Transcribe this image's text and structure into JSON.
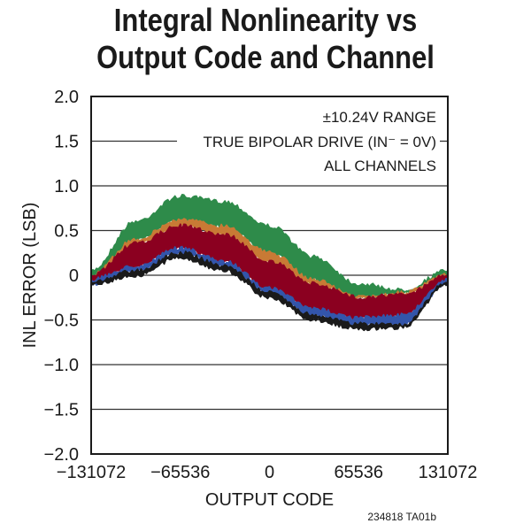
{
  "chart_data": {
    "type": "area",
    "title_lines": [
      "Integral Nonlinearity vs",
      "Output Code and Channel"
    ],
    "xlabel": "OUTPUT CODE",
    "ylabel": "INL ERROR (LSB)",
    "xlim": [
      -131072,
      131072
    ],
    "ylim": [
      -2.0,
      2.0
    ],
    "xticks": [
      -131072,
      -65536,
      0,
      65536,
      131072
    ],
    "xtick_labels": [
      "−131072",
      "−65536",
      "0",
      "65536",
      "131072"
    ],
    "yticks": [
      2.0,
      1.5,
      1.0,
      0.5,
      0,
      -0.5,
      -1.0,
      -1.5,
      -2.0
    ],
    "ytick_labels": [
      "2.0",
      "1.5",
      "1.0",
      "0.5",
      "0",
      "−0.5",
      "−1.0",
      "−1.5",
      "−2.0"
    ],
    "grid": "horizontal",
    "annotations": [
      "±10.24V RANGE",
      "TRUE BIPOLAR DRIVE (IN⁻ = 0V)",
      "ALL CHANNELS"
    ],
    "figure_note": "234818 TA01b",
    "x": [
      -131072,
      -98304,
      -65536,
      -32768,
      0,
      32768,
      65536,
      98304,
      131072
    ],
    "series": [
      {
        "name": "green",
        "color": "#2e8b4a",
        "upper": [
          0.05,
          0.6,
          0.88,
          0.82,
          0.55,
          0.2,
          -0.1,
          -0.17,
          0.05
        ],
        "lower": [
          -0.05,
          0.4,
          0.62,
          0.55,
          0.25,
          -0.05,
          -0.25,
          -0.2,
          0.0
        ]
      },
      {
        "name": "orange",
        "color": "#c87a35",
        "upper": [
          0.0,
          0.4,
          0.62,
          0.55,
          0.25,
          -0.05,
          -0.25,
          -0.2,
          0.0
        ],
        "lower": [
          -0.05,
          0.35,
          0.55,
          0.45,
          0.15,
          -0.1,
          -0.25,
          -0.22,
          0.0
        ]
      },
      {
        "name": "red",
        "color": "#8b0020",
        "upper": [
          0.0,
          0.35,
          0.55,
          0.45,
          0.15,
          -0.1,
          -0.25,
          -0.22,
          0.0
        ],
        "lower": [
          -0.05,
          0.1,
          0.3,
          0.15,
          -0.15,
          -0.38,
          -0.48,
          -0.45,
          -0.05
        ]
      },
      {
        "name": "blue",
        "color": "#3355aa",
        "upper": [
          -0.05,
          0.1,
          0.3,
          0.15,
          -0.15,
          -0.38,
          -0.48,
          -0.45,
          -0.05
        ],
        "lower": [
          -0.1,
          0.05,
          0.25,
          0.1,
          -0.2,
          -0.45,
          -0.55,
          -0.55,
          -0.08
        ]
      },
      {
        "name": "black",
        "color": "#1a1a1a",
        "upper": [
          -0.08,
          0.05,
          0.25,
          0.1,
          -0.2,
          -0.45,
          -0.55,
          -0.55,
          -0.08
        ],
        "lower": [
          -0.1,
          0.0,
          0.2,
          0.05,
          -0.25,
          -0.5,
          -0.6,
          -0.58,
          -0.1
        ]
      }
    ]
  }
}
